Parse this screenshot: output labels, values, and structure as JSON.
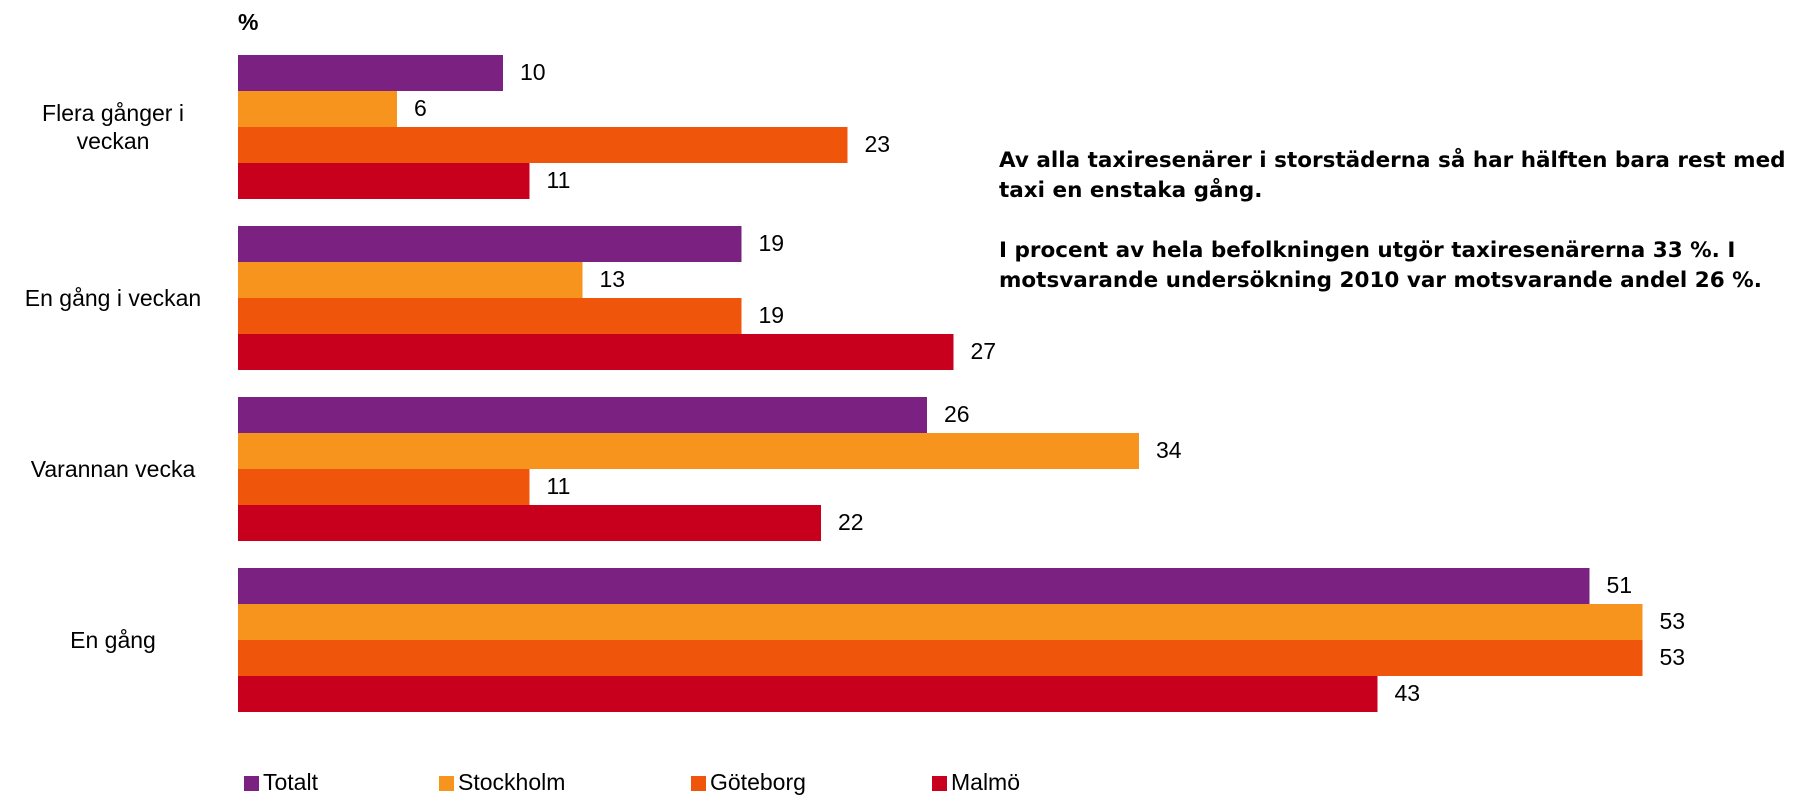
{
  "chart_data": {
    "type": "bar",
    "orientation": "horizontal",
    "axis_label": "%",
    "categories": [
      "Flera gånger i veckan",
      "En gång i veckan",
      "Varannan vecka",
      "En gång"
    ],
    "series": [
      {
        "name": "Totalt",
        "color": "#7b2182",
        "values": [
          10,
          19,
          26,
          51
        ]
      },
      {
        "name": "Stockholm",
        "color": "#f7941d",
        "values": [
          6,
          13,
          34,
          53
        ]
      },
      {
        "name": "Göteborg",
        "color": "#ef560b",
        "values": [
          23,
          19,
          11,
          53
        ]
      },
      {
        "name": "Malmö",
        "color": "#c8001e",
        "values": [
          11,
          27,
          22,
          43
        ]
      }
    ],
    "annotations": [
      "Av alla taxiresenärer i storstäderna så har hälften bara rest med taxi en enstaka gång.",
      "I procent av hela befolkningen utgör taxiresenärerna 33 %.  I motsvarande undersökning 2010 var motsvarande andel 26 %."
    ],
    "legend": "bottom"
  }
}
